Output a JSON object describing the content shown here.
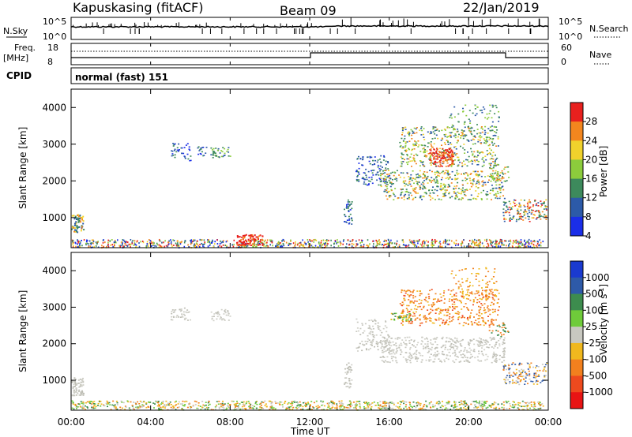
{
  "header": {
    "station": "Kapuskasing (fitACF)",
    "beam": "Beam 09",
    "date": "22/Jan/2019"
  },
  "noise_panel": {
    "left_label": "N.Sky",
    "right_label": "N.Search",
    "tick_top_left": "10^5",
    "tick_bottom_left": "10^0",
    "tick_top_right": "10^5",
    "tick_bottom_right": "10^0"
  },
  "freq_panel": {
    "left_label_1": "Freq.",
    "left_label_2": "[MHz]",
    "right_label": "Nave",
    "tick_top_left": "18",
    "tick_bottom_left": "8",
    "tick_top_right": "60",
    "tick_bottom_right": "0"
  },
  "cpid_panel": {
    "label": "CPID",
    "text": "normal (fast) 151"
  },
  "chart_data": [
    {
      "type": "heatmap",
      "ylabel": "Slant Range [km]",
      "yticks": [
        "1000",
        "2000",
        "3000",
        "4000"
      ],
      "colorbar": {
        "label": "Power [dB]",
        "ticks": [
          "4",
          "8",
          "12",
          "16",
          "20",
          "24",
          "28"
        ],
        "colors": [
          "#1a2ee8",
          "#2c5aa8",
          "#3d8a5c",
          "#8ccc3c",
          "#f0d22c",
          "#f3861e",
          "#e8201e"
        ]
      }
    },
    {
      "type": "heatmap",
      "ylabel": "Slant Range [km]",
      "yticks": [
        "1000",
        "2000",
        "3000",
        "4000"
      ],
      "xlabel": "Time UT",
      "xticks": [
        "00:00",
        "04:00",
        "08:00",
        "12:00",
        "16:00",
        "20:00",
        "00:00"
      ],
      "colorbar": {
        "label": "Velocity",
        "label_unit": "[m s",
        "label_exp": "-1",
        "label_close": "]",
        "ticks": [
          "1000",
          "500",
          "100",
          "25",
          "-25",
          "-100",
          "-500",
          "-1000"
        ],
        "colors": [
          "#1a3ad0",
          "#2e5aa8",
          "#3d8c4e",
          "#6fcb3a",
          "#c8c8c0",
          "#f0b81e",
          "#f2801e",
          "#ee4a1e",
          "#e81414"
        ]
      }
    }
  ]
}
